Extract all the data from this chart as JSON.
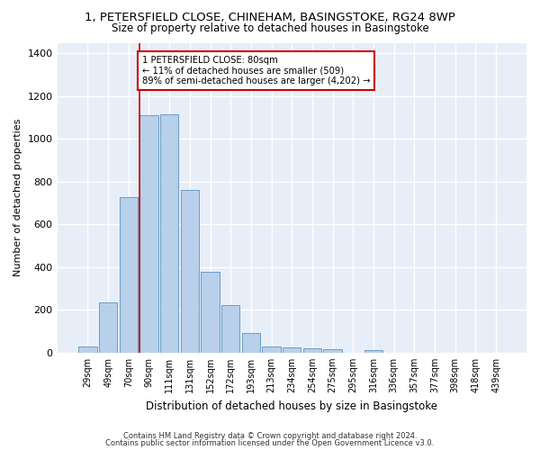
{
  "title_line1": "1, PETERSFIELD CLOSE, CHINEHAM, BASINGSTOKE, RG24 8WP",
  "title_line2": "Size of property relative to detached houses in Basingstoke",
  "xlabel": "Distribution of detached houses by size in Basingstoke",
  "ylabel": "Number of detached properties",
  "categories": [
    "29sqm",
    "49sqm",
    "70sqm",
    "90sqm",
    "111sqm",
    "131sqm",
    "152sqm",
    "172sqm",
    "193sqm",
    "213sqm",
    "234sqm",
    "254sqm",
    "275sqm",
    "295sqm",
    "316sqm",
    "336sqm",
    "357sqm",
    "377sqm",
    "398sqm",
    "418sqm",
    "439sqm"
  ],
  "values": [
    30,
    235,
    728,
    1110,
    1115,
    760,
    378,
    222,
    92,
    30,
    25,
    20,
    17,
    0,
    13,
    0,
    0,
    0,
    0,
    0,
    0
  ],
  "bar_color": "#b8d0ea",
  "bar_edge_color": "#6b9ec8",
  "vline_color": "#cc0000",
  "annotation_text": "1 PETERSFIELD CLOSE: 80sqm\n← 11% of detached houses are smaller (509)\n89% of semi-detached houses are larger (4,202) →",
  "annotation_box_color": "white",
  "annotation_box_edge_color": "#cc0000",
  "ylim": [
    0,
    1450
  ],
  "yticks": [
    0,
    200,
    400,
    600,
    800,
    1000,
    1200,
    1400
  ],
  "bg_color": "#e8eef7",
  "grid_color": "white",
  "footer_line1": "Contains HM Land Registry data © Crown copyright and database right 2024.",
  "footer_line2": "Contains public sector information licensed under the Open Government Licence v3.0."
}
